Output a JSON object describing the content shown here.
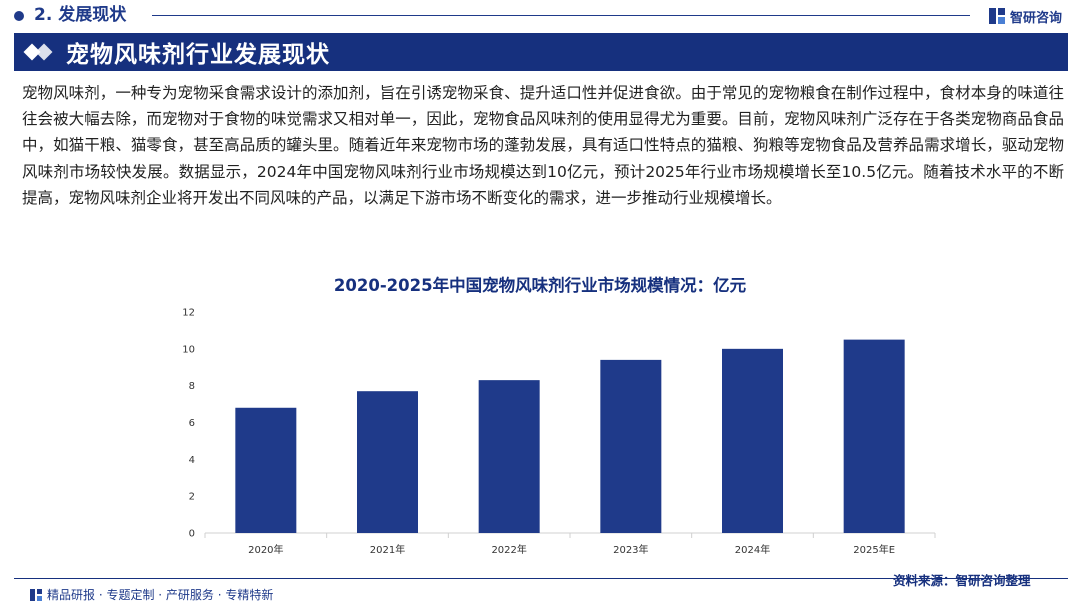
{
  "header": {
    "section": "2. 发展现状",
    "logo_text": "智研咨询",
    "banner_title": "宠物风味剂行业发展现状"
  },
  "body_text": "宠物风味剂，一种专为宠物采食需求设计的添加剂，旨在引诱宠物采食、提升适口性并促进食欲。由于常见的宠物粮食在制作过程中，食材本身的味道往往会被大幅去除，而宠物对于食物的味觉需求又相对单一，因此，宠物食品风味剂的使用显得尤为重要。目前，宠物风味剂广泛存在于各类宠物商品食品中，如猫干粮、猫零食，甚至高品质的罐头里。随着近年来宠物市场的蓬勃发展，具有适口性特点的猫粮、狗粮等宠物食品及营养品需求增长，驱动宠物风味剂市场较快发展。数据显示，2024年中国宠物风味剂行业市场规模达到10亿元，预计2025年行业市场规模增长至10.5亿元。随着技术水平的不断提高，宠物风味剂企业将开发出不同风味的产品，以满足下游市场不断变化的需求，进一步推动行业规模增长。",
  "chart_data": {
    "type": "bar",
    "title": "2020-2025年中国宠物风味剂行业市场规模情况：亿元",
    "categories": [
      "2020年",
      "2021年",
      "2022年",
      "2023年",
      "2024年",
      "2025年E"
    ],
    "values": [
      6.8,
      7.7,
      8.3,
      9.4,
      10.0,
      10.5
    ],
    "ylim": [
      0,
      12
    ],
    "yticks": [
      0,
      2,
      4,
      6,
      8,
      10,
      12
    ],
    "bar_color": "#1f3a8a",
    "grid": false
  },
  "footer": {
    "tagline": "精品研报 · 专题定制 · 产研服务 · 专精特新",
    "source": "资料来源：智研咨询整理"
  }
}
